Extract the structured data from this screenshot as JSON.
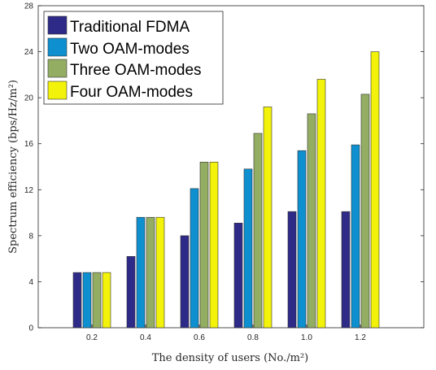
{
  "chart_data": {
    "type": "bar",
    "categories": [
      "0.2",
      "0.4",
      "0.6",
      "0.8",
      "1.0",
      "1.2"
    ],
    "series": [
      {
        "name": "Traditional FDMA",
        "color": "#2e2a87",
        "values": [
          4.8,
          6.2,
          8.0,
          9.1,
          10.1,
          10.1
        ]
      },
      {
        "name": "Two OAM-modes",
        "color": "#0e8fcf",
        "values": [
          4.8,
          9.6,
          12.1,
          13.8,
          15.4,
          15.9
        ]
      },
      {
        "name": "Three OAM-modes",
        "color": "#93ad62",
        "values": [
          4.8,
          9.6,
          14.4,
          16.9,
          18.6,
          20.3
        ]
      },
      {
        "name": "Four OAM-modes",
        "color": "#f2f20a",
        "values": [
          4.8,
          9.6,
          14.4,
          19.2,
          21.6,
          24.0
        ]
      }
    ],
    "y_ticks": [
      "0",
      "4",
      "8",
      "12",
      "16",
      "20",
      "24",
      "28"
    ],
    "ylim": [
      0,
      28
    ],
    "xlabel": "The density of users (No./m²)",
    "ylabel": "Spectrum efficiency (bps/Hz/m²)",
    "legend_position": "top-left",
    "grid": false
  }
}
